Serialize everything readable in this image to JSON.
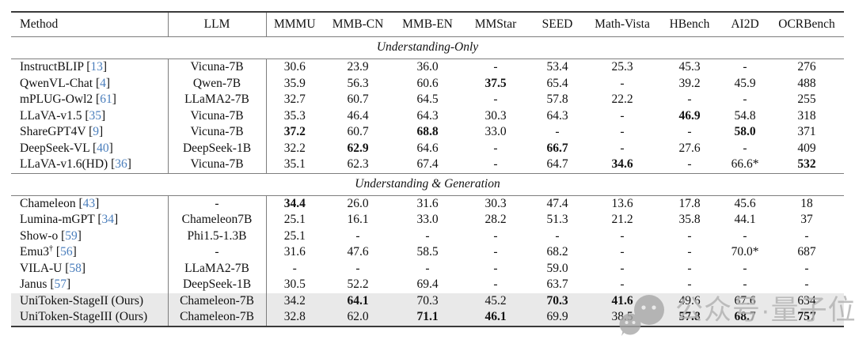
{
  "table": {
    "columns": [
      "Method",
      "LLM",
      "MMMU",
      "MMB-CN",
      "MMB-EN",
      "MMStar",
      "SEED",
      "Math-Vista",
      "HBench",
      "AI2D",
      "OCRBench"
    ],
    "citation_color": "#4a7ebc",
    "highlight_row_color": "#e9e9e9",
    "sections": [
      {
        "title": "Understanding-Only",
        "rows": [
          {
            "method": "InstructBLIP",
            "cite": "13",
            "llm": "Vicuna-7B",
            "values": [
              "30.6",
              "23.9",
              "36.0",
              "-",
              "53.4",
              "25.3",
              "45.3",
              "-",
              "276"
            ],
            "bold": []
          },
          {
            "method": "QwenVL-Chat",
            "cite": "4",
            "llm": "Qwen-7B",
            "values": [
              "35.9",
              "56.3",
              "60.6",
              "37.5",
              "65.4",
              "-",
              "39.2",
              "45.9",
              "488"
            ],
            "bold": [
              3
            ]
          },
          {
            "method": "mPLUG-Owl2",
            "cite": "61",
            "llm": "LLaMA2-7B",
            "values": [
              "32.7",
              "60.7",
              "64.5",
              "-",
              "57.8",
              "22.2",
              "-",
              "-",
              "255"
            ],
            "bold": []
          },
          {
            "method": "LLaVA-v1.5",
            "cite": "35",
            "llm": "Vicuna-7B",
            "values": [
              "35.3",
              "46.4",
              "64.3",
              "30.3",
              "64.3",
              "-",
              "46.9",
              "54.8",
              "318"
            ],
            "bold": [
              6
            ]
          },
          {
            "method": "ShareGPT4V",
            "cite": "9",
            "llm": "Vicuna-7B",
            "values": [
              "37.2",
              "60.7",
              "68.8",
              "33.0",
              "-",
              "-",
              "-",
              "58.0",
              "371"
            ],
            "bold": [
              0,
              2,
              7
            ]
          },
          {
            "method": "DeepSeek-VL",
            "cite": "40",
            "llm": "DeepSeek-1B",
            "values": [
              "32.2",
              "62.9",
              "64.6",
              "-",
              "66.7",
              "-",
              "27.6",
              "-",
              "409"
            ],
            "bold": [
              1,
              4
            ]
          },
          {
            "method": "LLaVA-v1.6(HD)",
            "cite": "36",
            "llm": "Vicuna-7B",
            "values": [
              "35.1",
              "62.3",
              "67.4",
              "-",
              "64.7",
              "34.6",
              "-",
              "66.6*",
              "532"
            ],
            "bold": [
              5,
              8
            ]
          }
        ]
      },
      {
        "title": "Understanding & Generation",
        "rows": [
          {
            "method": "Chameleon",
            "cite": "43",
            "llm": "-",
            "values": [
              "34.4",
              "26.0",
              "31.6",
              "30.3",
              "47.4",
              "13.6",
              "17.8",
              "45.6",
              "18"
            ],
            "bold": [
              0
            ]
          },
          {
            "method": "Lumina-mGPT",
            "cite": "34",
            "llm": "Chameleon7B",
            "values": [
              "25.1",
              "16.1",
              "33.0",
              "28.2",
              "51.3",
              "21.2",
              "35.8",
              "44.1",
              "37"
            ],
            "bold": []
          },
          {
            "method": "Show-o",
            "cite": "59",
            "llm": "Phi1.5-1.3B",
            "values": [
              "25.1",
              "-",
              "-",
              "-",
              "-",
              "-",
              "-",
              "-",
              "-"
            ],
            "bold": []
          },
          {
            "method": "Emu3",
            "sup": "†",
            "cite": "56",
            "llm": "-",
            "values": [
              "31.6",
              "47.6",
              "58.5",
              "-",
              "68.2",
              "-",
              "-",
              "70.0*",
              "687"
            ],
            "bold": []
          },
          {
            "method": "VILA-U",
            "cite": "58",
            "llm": "LLaMA2-7B",
            "values": [
              "-",
              "-",
              "-",
              "-",
              "59.0",
              "-",
              "-",
              "-",
              "-"
            ],
            "bold": []
          },
          {
            "method": "Janus",
            "cite": "57",
            "llm": "DeepSeek-1B",
            "values": [
              "30.5",
              "52.2",
              "69.4",
              "-",
              "63.7",
              "-",
              "-",
              "-",
              "-"
            ],
            "bold": []
          },
          {
            "method": "UniToken-StageII (Ours)",
            "cite": "",
            "llm": "Chameleon-7B",
            "values": [
              "34.2",
              "64.1",
              "70.3",
              "45.2",
              "70.3",
              "41.6",
              "49.6",
              "67.6",
              "634"
            ],
            "bold": [
              1,
              4,
              5
            ],
            "highlight": true
          },
          {
            "method": "UniToken-StageIII (Ours)",
            "cite": "",
            "llm": "Chameleon-7B",
            "values": [
              "32.8",
              "62.0",
              "71.1",
              "46.1",
              "69.9",
              "38.5",
              "57.8",
              "68.7",
              "757"
            ],
            "bold": [
              2,
              3,
              6,
              7,
              8
            ],
            "highlight": true
          }
        ]
      }
    ]
  },
  "watermark": {
    "text": "公众号·量子位",
    "icon": "wechat-icon",
    "color": "#b4b4b4"
  }
}
